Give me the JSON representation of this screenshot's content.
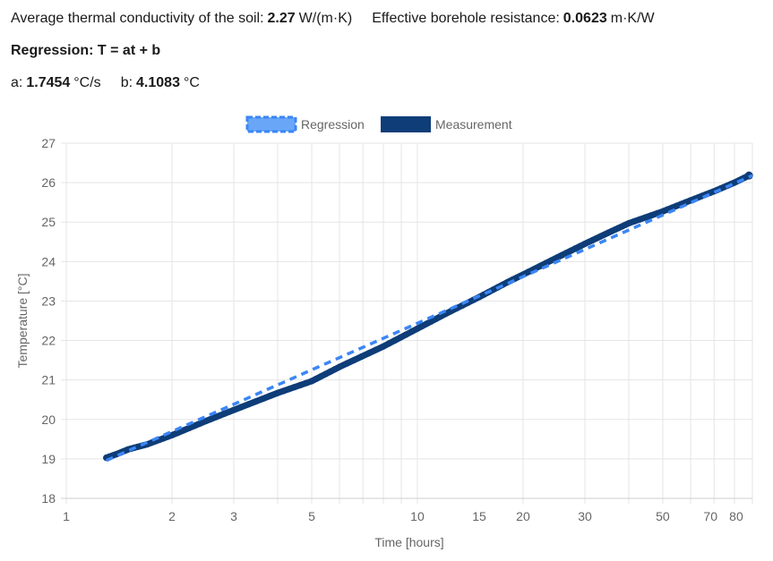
{
  "summary": {
    "conductivity_label": "Average thermal conductivity of the soil:",
    "conductivity_value": "2.27",
    "conductivity_unit": "W/(m·K)",
    "resistance_label": "Effective borehole resistance:",
    "resistance_value": "0.0623",
    "resistance_unit": "m·K/W",
    "regression_heading": "Regression: T = at + b",
    "a_label": "a:",
    "a_value": "1.7454",
    "a_unit": "°C/s",
    "b_label": "b:",
    "b_value": "4.1083",
    "b_unit": "°C"
  },
  "chart_data": {
    "type": "line",
    "xscale": "log",
    "xlabel": "Time [hours]",
    "ylabel": "Temperature [°C]",
    "xlim": [
      1,
      90
    ],
    "ylim": [
      18,
      27
    ],
    "grid": true,
    "legend_position": "top-center",
    "x_ticks": [
      1,
      2,
      3,
      5,
      10,
      15,
      20,
      30,
      50,
      70,
      80
    ],
    "y_ticks": [
      18,
      19,
      20,
      21,
      22,
      23,
      24,
      25,
      26,
      27
    ],
    "series": [
      {
        "name": "Regression",
        "color": "#3b86f5",
        "style": "dashed",
        "x": [
          1.3,
          90
        ],
        "y": [
          18.96,
          26.18
        ]
      },
      {
        "name": "Measurement",
        "color": "#0e3d78",
        "style": "solid",
        "x": [
          1.3,
          1.4,
          1.5,
          1.7,
          2.0,
          2.5,
          3.0,
          4.0,
          5.0,
          6.0,
          8.0,
          10.0,
          12.0,
          15.0,
          18.0,
          20.0,
          25.0,
          30.0,
          35.0,
          40.0,
          50.0,
          60.0,
          70.0,
          80.0,
          88.0
        ],
        "y": [
          19.03,
          19.13,
          19.24,
          19.37,
          19.6,
          19.96,
          20.24,
          20.67,
          20.97,
          21.33,
          21.85,
          22.3,
          22.67,
          23.1,
          23.47,
          23.67,
          24.1,
          24.45,
          24.73,
          24.97,
          25.27,
          25.55,
          25.78,
          26.0,
          26.18
        ]
      }
    ]
  }
}
